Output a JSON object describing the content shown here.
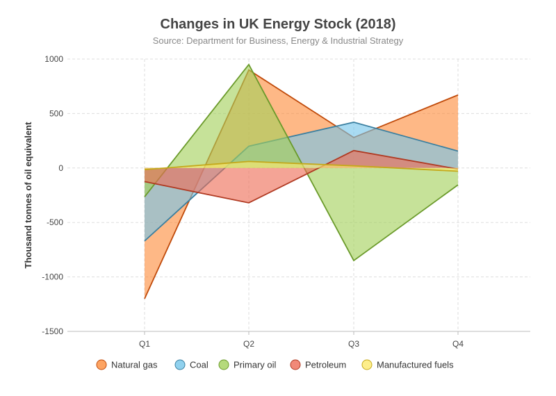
{
  "chart_data": {
    "type": "area",
    "title": "Changes in UK Energy Stock (2018)",
    "subtitle": "Source: Department for Business, Energy & Industrial Strategy",
    "xlabel": "",
    "ylabel": "Thousand tonnes of oil equivalent",
    "categories": [
      "Q1",
      "Q2",
      "Q3",
      "Q4"
    ],
    "ylim": [
      -1500,
      1000
    ],
    "yticks": [
      1000,
      500,
      0,
      -500,
      -1000,
      -1500
    ],
    "ytick_labels": [
      "1000",
      "500",
      "0",
      "-500",
      "-1000",
      "-1500"
    ],
    "grid": true,
    "legend_position": "bottom",
    "series": [
      {
        "name": "Natural gas",
        "values": [
          -1200,
          900,
          280,
          670
        ],
        "fill": "#fd8d3c",
        "stroke": "#c04a0a"
      },
      {
        "name": "Coal",
        "values": [
          -670,
          200,
          420,
          155
        ],
        "fill": "#74c5ea",
        "stroke": "#3a7fa0"
      },
      {
        "name": "Primary oil",
        "values": [
          -265,
          950,
          -850,
          -155
        ],
        "fill": "#a3d15b",
        "stroke": "#6a9a2a"
      },
      {
        "name": "Petroleum",
        "values": [
          -125,
          -320,
          160,
          -10
        ],
        "fill": "#ee6c56",
        "stroke": "#b03a22"
      },
      {
        "name": "Manufactured fuels",
        "values": [
          -15,
          60,
          20,
          -30
        ],
        "fill": "#fdea6e",
        "stroke": "#c4a81a"
      }
    ]
  }
}
